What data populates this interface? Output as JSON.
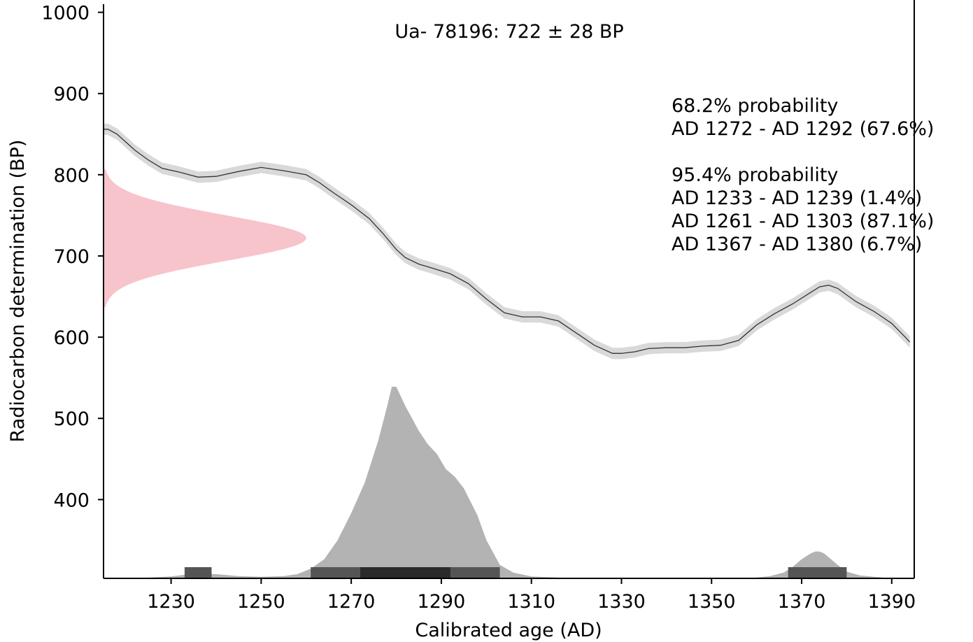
{
  "chart_data": {
    "type": "area",
    "title": "Ua- 78196: 722 ± 28 BP",
    "xlabel": "Calibrated age (AD)",
    "ylabel": "Radiocarbon determination (BP)",
    "xlim": [
      1215,
      1395
    ],
    "ylim": [
      303,
      1010
    ],
    "x_ticks": [
      "1230",
      "1250",
      "1270",
      "1290",
      "1310",
      "1330",
      "1350",
      "1370",
      "1390"
    ],
    "y_ticks": [
      "1000",
      "900",
      "800",
      "700",
      "600",
      "500",
      "400"
    ],
    "grid": false,
    "annotations": {
      "p68_header": "68.2% probability",
      "p68_lines": [
        "AD 1272 - AD 1292 (67.6%)"
      ],
      "p95_header": "95.4% probability",
      "p95_lines": [
        "AD 1233 - AD 1239 (1.4%)",
        "AD 1261 - AD 1303 (87.1%)",
        "AD 1367 - AD 1380 (6.7%)"
      ]
    },
    "calibration_curve": {
      "x": [
        1215,
        1216,
        1218,
        1220,
        1222,
        1225,
        1228,
        1232,
        1236,
        1240,
        1245,
        1250,
        1255,
        1260,
        1263,
        1266,
        1270,
        1274,
        1277,
        1280,
        1282,
        1285,
        1288,
        1292,
        1296,
        1300,
        1304,
        1308,
        1312,
        1316,
        1320,
        1324,
        1328,
        1330,
        1333,
        1336,
        1340,
        1344,
        1348,
        1352,
        1356,
        1360,
        1364,
        1368,
        1372,
        1374,
        1376,
        1378,
        1382,
        1386,
        1390,
        1393,
        1394
      ],
      "y": [
        856,
        856,
        850,
        840,
        830,
        818,
        808,
        803,
        797,
        798,
        804,
        809,
        805,
        800,
        790,
        778,
        763,
        746,
        728,
        708,
        698,
        690,
        685,
        678,
        666,
        647,
        630,
        625,
        625,
        620,
        605,
        590,
        580,
        580,
        582,
        586,
        587,
        587,
        589,
        590,
        596,
        615,
        629,
        641,
        655,
        662,
        664,
        660,
        644,
        632,
        617,
        600,
        594
      ],
      "band_bp": 7
    },
    "measurement_bp": 722,
    "measurement_sigma_bp": 28,
    "posterior": {
      "x": [
        1220,
        1225,
        1230,
        1235,
        1240,
        1245,
        1250,
        1255,
        1258,
        1261,
        1264,
        1267,
        1270,
        1273,
        1276,
        1278,
        1279,
        1280,
        1282,
        1285,
        1287,
        1289,
        1291,
        1293,
        1295,
        1298,
        1300,
        1303,
        1306,
        1310,
        1320,
        1340,
        1355,
        1360,
        1363,
        1366,
        1368,
        1370,
        1372,
        1373,
        1374,
        1375,
        1376,
        1378,
        1380,
        1383,
        1388,
        1392
      ],
      "density": [
        0.0,
        0.004,
        0.01,
        0.025,
        0.022,
        0.012,
        0.008,
        0.012,
        0.022,
        0.05,
        0.1,
        0.2,
        0.34,
        0.5,
        0.72,
        0.9,
        1.0,
        1.0,
        0.9,
        0.77,
        0.7,
        0.65,
        0.57,
        0.53,
        0.47,
        0.33,
        0.2,
        0.07,
        0.03,
        0.01,
        0.0,
        0.0,
        0.0,
        0.004,
        0.012,
        0.03,
        0.06,
        0.1,
        0.13,
        0.14,
        0.14,
        0.13,
        0.11,
        0.07,
        0.035,
        0.015,
        0.004,
        0.0
      ]
    },
    "hpd_68": [
      [
        1272,
        1292
      ]
    ],
    "hpd_95": [
      [
        1233,
        1239
      ],
      [
        1261,
        1303
      ],
      [
        1367,
        1380
      ]
    ],
    "colors": {
      "calibration_line": "#333333",
      "calibration_band": "#d9d9d9",
      "measurement": "#f7c4cc",
      "posterior": "#b3b3b3",
      "hpd_95": "#555555",
      "hpd_68": "#2a2a2a"
    }
  }
}
